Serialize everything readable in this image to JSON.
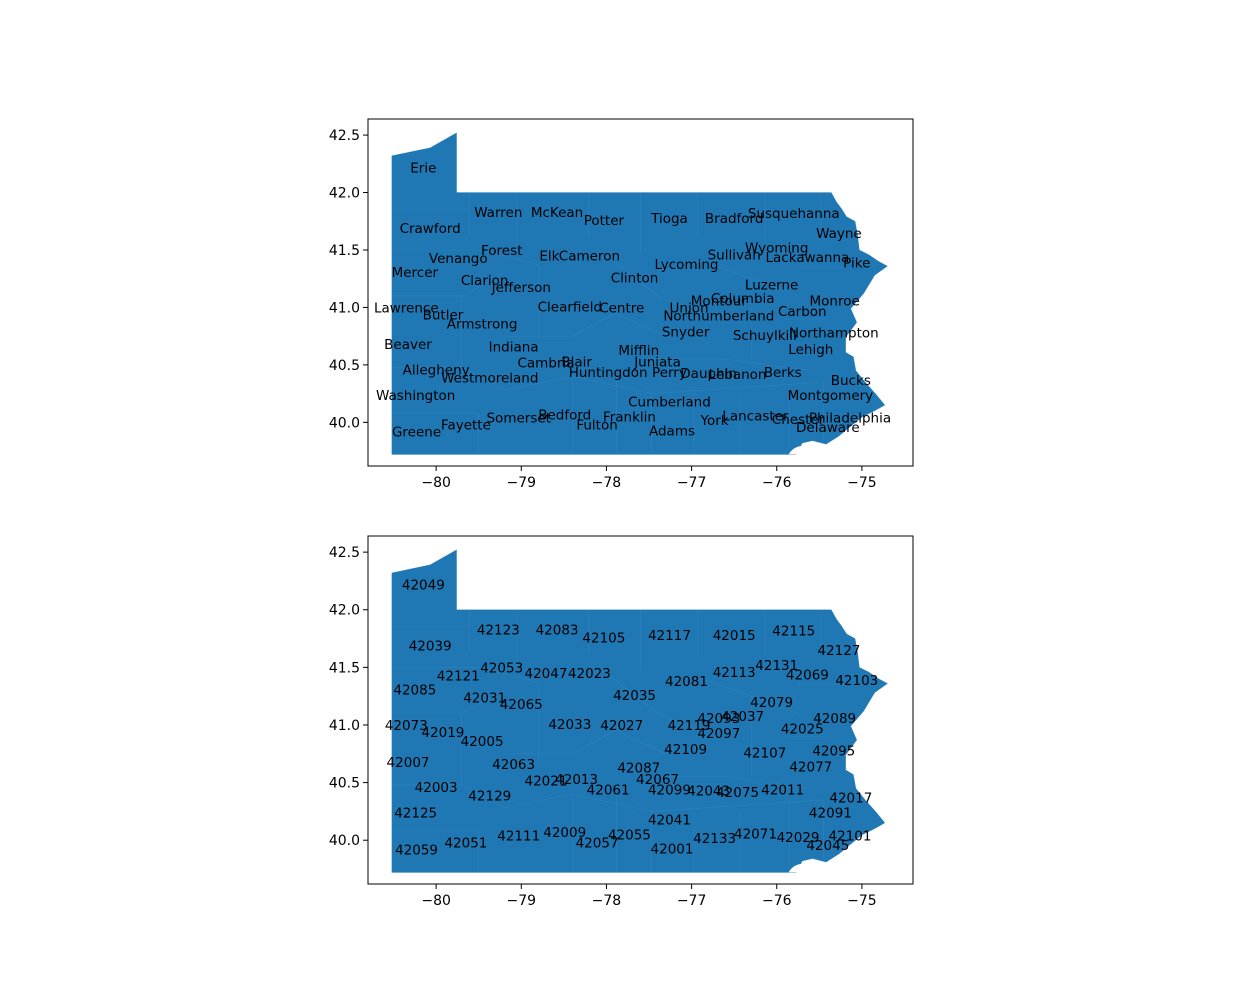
{
  "chart_data": [
    {
      "type": "map",
      "title": "",
      "xlabel": "",
      "ylabel": "",
      "xlim": [
        -80.8,
        -74.4
      ],
      "ylim": [
        39.62,
        42.64
      ],
      "x_ticks": [
        -80,
        -79,
        -78,
        -77,
        -76,
        -75
      ],
      "y_ticks": [
        40.0,
        40.5,
        41.0,
        41.5,
        42.0,
        42.5
      ],
      "x_tick_labels": [
        "−80",
        "−79",
        "−78",
        "−77",
        "−76",
        "−75"
      ],
      "y_tick_labels": [
        "40.0",
        "40.5",
        "41.0",
        "41.5",
        "42.0",
        "42.5"
      ],
      "fill_color": "#1f77b4",
      "grid": false,
      "labels": [
        {
          "text": "Erie",
          "lon": -80.15,
          "lat": 42.22
        },
        {
          "text": "Crawford",
          "lon": -80.07,
          "lat": 41.69
        },
        {
          "text": "Warren",
          "lon": -79.27,
          "lat": 41.83
        },
        {
          "text": "McKean",
          "lon": -78.58,
          "lat": 41.83
        },
        {
          "text": "Potter",
          "lon": -78.03,
          "lat": 41.76
        },
        {
          "text": "Tioga",
          "lon": -77.26,
          "lat": 41.78
        },
        {
          "text": "Bradford",
          "lon": -76.5,
          "lat": 41.78
        },
        {
          "text": "Susquehanna",
          "lon": -75.8,
          "lat": 41.82
        },
        {
          "text": "Wayne",
          "lon": -75.27,
          "lat": 41.65
        },
        {
          "text": "Wyoming",
          "lon": -76.0,
          "lat": 41.52
        },
        {
          "text": "Venango",
          "lon": -79.74,
          "lat": 41.43
        },
        {
          "text": "Forest",
          "lon": -79.23,
          "lat": 41.5
        },
        {
          "text": "Elk",
          "lon": -78.67,
          "lat": 41.45
        },
        {
          "text": "Cameron",
          "lon": -78.2,
          "lat": 41.45
        },
        {
          "text": "Sullivan",
          "lon": -76.5,
          "lat": 41.46
        },
        {
          "text": "Lackawanna",
          "lon": -75.64,
          "lat": 41.44
        },
        {
          "text": "Pike",
          "lon": -75.06,
          "lat": 41.39
        },
        {
          "text": "Mercer",
          "lon": -80.25,
          "lat": 41.31
        },
        {
          "text": "Lycoming",
          "lon": -77.06,
          "lat": 41.38
        },
        {
          "text": "Clarion",
          "lon": -79.43,
          "lat": 41.24
        },
        {
          "text": "Clinton",
          "lon": -77.67,
          "lat": 41.26
        },
        {
          "text": "Jefferson",
          "lon": -79.0,
          "lat": 41.18
        },
        {
          "text": "Luzerne",
          "lon": -76.06,
          "lat": 41.2
        },
        {
          "text": "Lawrence",
          "lon": -80.35,
          "lat": 41.0
        },
        {
          "text": "Columbia",
          "lon": -76.4,
          "lat": 41.08
        },
        {
          "text": "Montour",
          "lon": -76.68,
          "lat": 41.06
        },
        {
          "text": "Monroe",
          "lon": -75.32,
          "lat": 41.06
        },
        {
          "text": "Clearfield",
          "lon": -78.43,
          "lat": 41.01
        },
        {
          "text": "Centre",
          "lon": -77.82,
          "lat": 41.0
        },
        {
          "text": "Union",
          "lon": -77.03,
          "lat": 41.0
        },
        {
          "text": "Carbon",
          "lon": -75.7,
          "lat": 40.97
        },
        {
          "text": "Butler",
          "lon": -79.92,
          "lat": 40.94
        },
        {
          "text": "Northumberland",
          "lon": -76.68,
          "lat": 40.93
        },
        {
          "text": "Armstrong",
          "lon": -79.46,
          "lat": 40.86
        },
        {
          "text": "Snyder",
          "lon": -77.07,
          "lat": 40.79
        },
        {
          "text": "Schuylkill",
          "lon": -76.14,
          "lat": 40.76
        },
        {
          "text": "Northampton",
          "lon": -75.33,
          "lat": 40.78
        },
        {
          "text": "Beaver",
          "lon": -80.33,
          "lat": 40.68
        },
        {
          "text": "Indiana",
          "lon": -79.09,
          "lat": 40.66
        },
        {
          "text": "Mifflin",
          "lon": -77.62,
          "lat": 40.63
        },
        {
          "text": "Lehigh",
          "lon": -75.6,
          "lat": 40.64
        },
        {
          "text": "Cambria",
          "lon": -78.71,
          "lat": 40.52
        },
        {
          "text": "Blair",
          "lon": -78.35,
          "lat": 40.53
        },
        {
          "text": "Juniata",
          "lon": -77.4,
          "lat": 40.53
        },
        {
          "text": "Allegheny",
          "lon": -80.0,
          "lat": 40.46
        },
        {
          "text": "Huntingdon",
          "lon": -77.98,
          "lat": 40.44
        },
        {
          "text": "Perry",
          "lon": -77.26,
          "lat": 40.44
        },
        {
          "text": "Dauphin",
          "lon": -76.8,
          "lat": 40.43
        },
        {
          "text": "Lebanon",
          "lon": -76.46,
          "lat": 40.42
        },
        {
          "text": "Berks",
          "lon": -75.93,
          "lat": 40.44
        },
        {
          "text": "Westmoreland",
          "lon": -79.37,
          "lat": 40.39
        },
        {
          "text": "Bucks",
          "lon": -75.13,
          "lat": 40.37
        },
        {
          "text": "Washington",
          "lon": -80.24,
          "lat": 40.24
        },
        {
          "text": "Montgomery",
          "lon": -75.37,
          "lat": 40.24
        },
        {
          "text": "Cumberland",
          "lon": -77.26,
          "lat": 40.18
        },
        {
          "text": "Bedford",
          "lon": -78.49,
          "lat": 40.07
        },
        {
          "text": "Franklin",
          "lon": -77.73,
          "lat": 40.05
        },
        {
          "text": "Somerset",
          "lon": -79.03,
          "lat": 40.04
        },
        {
          "text": "Lancaster",
          "lon": -76.25,
          "lat": 40.06
        },
        {
          "text": "Chester",
          "lon": -75.75,
          "lat": 40.03
        },
        {
          "text": "Philadelphia",
          "lon": -75.14,
          "lat": 40.04
        },
        {
          "text": "York",
          "lon": -76.73,
          "lat": 40.02
        },
        {
          "text": "Fayette",
          "lon": -79.65,
          "lat": 39.98
        },
        {
          "text": "Fulton",
          "lon": -78.11,
          "lat": 39.98
        },
        {
          "text": "Delaware",
          "lon": -75.4,
          "lat": 39.96
        },
        {
          "text": "Adams",
          "lon": -77.23,
          "lat": 39.93
        },
        {
          "text": "Greene",
          "lon": -80.23,
          "lat": 39.92
        }
      ]
    },
    {
      "type": "map",
      "title": "",
      "xlabel": "",
      "ylabel": "",
      "xlim": [
        -80.8,
        -74.4
      ],
      "ylim": [
        39.62,
        42.64
      ],
      "x_ticks": [
        -80,
        -79,
        -78,
        -77,
        -76,
        -75
      ],
      "y_ticks": [
        40.0,
        40.5,
        41.0,
        41.5,
        42.0,
        42.5
      ],
      "x_tick_labels": [
        "−80",
        "−79",
        "−78",
        "−77",
        "−76",
        "−75"
      ],
      "y_tick_labels": [
        "40.0",
        "40.5",
        "41.0",
        "41.5",
        "42.0",
        "42.5"
      ],
      "fill_color": "#1f77b4",
      "grid": false,
      "labels": [
        {
          "text": "42049",
          "lon": -80.15,
          "lat": 42.22
        },
        {
          "text": "42039",
          "lon": -80.07,
          "lat": 41.69
        },
        {
          "text": "42123",
          "lon": -79.27,
          "lat": 41.83
        },
        {
          "text": "42083",
          "lon": -78.58,
          "lat": 41.83
        },
        {
          "text": "42105",
          "lon": -78.03,
          "lat": 41.76
        },
        {
          "text": "42117",
          "lon": -77.26,
          "lat": 41.78
        },
        {
          "text": "42015",
          "lon": -76.5,
          "lat": 41.78
        },
        {
          "text": "42115",
          "lon": -75.8,
          "lat": 41.82
        },
        {
          "text": "42127",
          "lon": -75.27,
          "lat": 41.65
        },
        {
          "text": "42131",
          "lon": -76.0,
          "lat": 41.52
        },
        {
          "text": "42053",
          "lon": -79.23,
          "lat": 41.5
        },
        {
          "text": "42047",
          "lon": -78.71,
          "lat": 41.45
        },
        {
          "text": "42023",
          "lon": -78.2,
          "lat": 41.45
        },
        {
          "text": "42113",
          "lon": -76.5,
          "lat": 41.46
        },
        {
          "text": "42121",
          "lon": -79.74,
          "lat": 41.43
        },
        {
          "text": "42069",
          "lon": -75.64,
          "lat": 41.44
        },
        {
          "text": "42103",
          "lon": -75.06,
          "lat": 41.39
        },
        {
          "text": "42085",
          "lon": -80.25,
          "lat": 41.31
        },
        {
          "text": "42081",
          "lon": -77.06,
          "lat": 41.38
        },
        {
          "text": "42035",
          "lon": -77.67,
          "lat": 41.26
        },
        {
          "text": "42031",
          "lon": -79.43,
          "lat": 41.24
        },
        {
          "text": "42079",
          "lon": -76.06,
          "lat": 41.2
        },
        {
          "text": "42065",
          "lon": -79.0,
          "lat": 41.18
        },
        {
          "text": "42073",
          "lon": -80.35,
          "lat": 41.0
        },
        {
          "text": "42093",
          "lon": -76.68,
          "lat": 41.06
        },
        {
          "text": "42037",
          "lon": -76.4,
          "lat": 41.08
        },
        {
          "text": "42089",
          "lon": -75.32,
          "lat": 41.06
        },
        {
          "text": "42033",
          "lon": -78.43,
          "lat": 41.01
        },
        {
          "text": "42027",
          "lon": -77.82,
          "lat": 41.0
        },
        {
          "text": "42119",
          "lon": -77.03,
          "lat": 41.0
        },
        {
          "text": "42025",
          "lon": -75.7,
          "lat": 40.97
        },
        {
          "text": "42019",
          "lon": -79.92,
          "lat": 40.94
        },
        {
          "text": "42097",
          "lon": -76.68,
          "lat": 40.93
        },
        {
          "text": "42005",
          "lon": -79.46,
          "lat": 40.86
        },
        {
          "text": "42109",
          "lon": -77.07,
          "lat": 40.79
        },
        {
          "text": "42107",
          "lon": -76.14,
          "lat": 40.76
        },
        {
          "text": "42095",
          "lon": -75.33,
          "lat": 40.78
        },
        {
          "text": "42007",
          "lon": -80.33,
          "lat": 40.68
        },
        {
          "text": "42063",
          "lon": -79.09,
          "lat": 40.66
        },
        {
          "text": "42087",
          "lon": -77.62,
          "lat": 40.63
        },
        {
          "text": "42077",
          "lon": -75.6,
          "lat": 40.64
        },
        {
          "text": "42021",
          "lon": -78.71,
          "lat": 40.52
        },
        {
          "text": "42013",
          "lon": -78.35,
          "lat": 40.53
        },
        {
          "text": "42067",
          "lon": -77.4,
          "lat": 40.53
        },
        {
          "text": "42003",
          "lon": -80.0,
          "lat": 40.46
        },
        {
          "text": "42061",
          "lon": -77.98,
          "lat": 40.44
        },
        {
          "text": "42099",
          "lon": -77.26,
          "lat": 40.44
        },
        {
          "text": "42043",
          "lon": -76.8,
          "lat": 40.43
        },
        {
          "text": "42075",
          "lon": -76.46,
          "lat": 40.42
        },
        {
          "text": "42011",
          "lon": -75.93,
          "lat": 40.44
        },
        {
          "text": "42129",
          "lon": -79.37,
          "lat": 40.39
        },
        {
          "text": "42017",
          "lon": -75.13,
          "lat": 40.37
        },
        {
          "text": "42125",
          "lon": -80.24,
          "lat": 40.24
        },
        {
          "text": "42091",
          "lon": -75.37,
          "lat": 40.24
        },
        {
          "text": "42041",
          "lon": -77.26,
          "lat": 40.18
        },
        {
          "text": "42009",
          "lon": -78.49,
          "lat": 40.07
        },
        {
          "text": "42055",
          "lon": -77.73,
          "lat": 40.05
        },
        {
          "text": "42111",
          "lon": -79.03,
          "lat": 40.04
        },
        {
          "text": "42071",
          "lon": -76.25,
          "lat": 40.06
        },
        {
          "text": "42029",
          "lon": -75.75,
          "lat": 40.03
        },
        {
          "text": "42101",
          "lon": -75.14,
          "lat": 40.04
        },
        {
          "text": "42133",
          "lon": -76.73,
          "lat": 40.02
        },
        {
          "text": "42051",
          "lon": -79.65,
          "lat": 39.98
        },
        {
          "text": "42057",
          "lon": -78.11,
          "lat": 39.98
        },
        {
          "text": "42045",
          "lon": -75.4,
          "lat": 39.96
        },
        {
          "text": "42001",
          "lon": -77.23,
          "lat": 39.93
        },
        {
          "text": "42059",
          "lon": -80.23,
          "lat": 39.92
        }
      ]
    }
  ]
}
